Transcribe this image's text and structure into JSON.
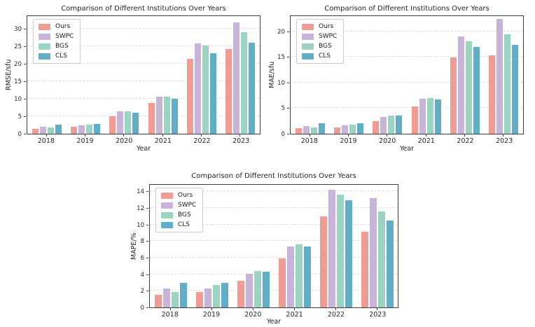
{
  "colors": {
    "ours": "#F09B94",
    "swpc": "#C8B3DA",
    "bgs": "#9BD4C2",
    "cls": "#61AFC6",
    "grid": "#dedede",
    "spine": "#3c3c3c"
  },
  "chart_data": [
    {
      "type": "bar",
      "title": "Comparison of Different Institutions Over Years",
      "xlabel": "Year",
      "ylabel": "RMSE/sfu",
      "categories": [
        "2018",
        "2019",
        "2020",
        "2021",
        "2022",
        "2023"
      ],
      "yticks": [
        0,
        5,
        10,
        15,
        20,
        25,
        30
      ],
      "ylim": [
        0,
        33.5
      ],
      "grid": "horizontal-dashed",
      "legend_position": "upper-left",
      "series": [
        {
          "name": "Ours",
          "color": "#F09B94",
          "values": [
            1.4,
            2.0,
            4.9,
            8.7,
            21.4,
            24.2
          ]
        },
        {
          "name": "SWPC",
          "color": "#C8B3DA",
          "values": [
            2.0,
            2.4,
            6.3,
            10.6,
            25.7,
            31.7
          ]
        },
        {
          "name": "BGS",
          "color": "#9BD4C2",
          "values": [
            1.7,
            2.6,
            6.4,
            10.5,
            25.1,
            29.0
          ]
        },
        {
          "name": "CLS",
          "color": "#61AFC6",
          "values": [
            2.6,
            2.7,
            6.0,
            9.9,
            23.0,
            25.9
          ]
        }
      ]
    },
    {
      "type": "bar",
      "title": "Comparison of Different Institutions Over Years",
      "xlabel": "Year",
      "ylabel": "MAE/sfu",
      "categories": [
        "2018",
        "2019",
        "2020",
        "2021",
        "2022",
        "2023"
      ],
      "yticks": [
        0,
        5,
        10,
        15,
        20
      ],
      "ylim": [
        0,
        23
      ],
      "grid": "horizontal-dashed",
      "legend_position": "upper-left",
      "series": [
        {
          "name": "Ours",
          "color": "#F09B94",
          "values": [
            1.1,
            1.3,
            2.5,
            5.4,
            14.9,
            15.4
          ]
        },
        {
          "name": "SWPC",
          "color": "#C8B3DA",
          "values": [
            1.5,
            1.6,
            3.3,
            6.9,
            19.0,
            22.4
          ]
        },
        {
          "name": "BGS",
          "color": "#9BD4C2",
          "values": [
            1.3,
            1.8,
            3.6,
            7.0,
            18.1,
            19.5
          ]
        },
        {
          "name": "CLS",
          "color": "#61AFC6",
          "values": [
            2.1,
            2.0,
            3.5,
            6.7,
            17.0,
            17.4
          ]
        }
      ]
    },
    {
      "type": "bar",
      "title": "Comparison of Different Institutions Over Years",
      "xlabel": "Year",
      "ylabel": "MAPE/%",
      "categories": [
        "2018",
        "2019",
        "2020",
        "2021",
        "2022",
        "2023"
      ],
      "yticks": [
        0,
        2,
        4,
        6,
        8,
        10,
        12,
        14
      ],
      "ylim": [
        0,
        14.8
      ],
      "grid": "horizontal-dashed",
      "legend_position": "upper-left",
      "series": [
        {
          "name": "Ours",
          "color": "#F09B94",
          "values": [
            1.5,
            1.9,
            3.2,
            5.9,
            11.0,
            9.1
          ]
        },
        {
          "name": "SWPC",
          "color": "#C8B3DA",
          "values": [
            2.3,
            2.3,
            4.1,
            7.4,
            14.2,
            13.2
          ]
        },
        {
          "name": "BGS",
          "color": "#9BD4C2",
          "values": [
            1.9,
            2.7,
            4.4,
            7.6,
            13.6,
            11.6
          ]
        },
        {
          "name": "CLS",
          "color": "#61AFC6",
          "values": [
            3.0,
            3.0,
            4.3,
            7.4,
            12.9,
            10.5
          ]
        }
      ]
    }
  ]
}
